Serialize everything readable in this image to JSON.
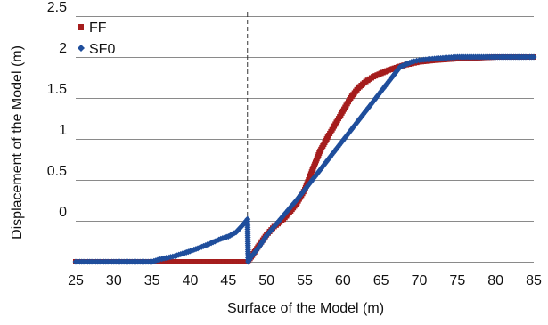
{
  "chart_data": {
    "type": "scatter",
    "title": "",
    "xlabel": "Surface of the Model (m)",
    "ylabel": "Displacement of the Model (m)",
    "xlim": [
      25,
      85
    ],
    "ylim": [
      -0.5,
      2.5
    ],
    "x_ticks": [
      "25",
      "30",
      "35",
      "40",
      "45",
      "50",
      "55",
      "60",
      "65",
      "70",
      "75",
      "80",
      "85"
    ],
    "y_ticks": [
      "0",
      "0.5",
      "1",
      "1.5",
      "2",
      "2.5"
    ],
    "grid": true,
    "legend_position": "top-left",
    "reference_line": {
      "x": 47.5,
      "style": "dashed"
    },
    "series": [
      {
        "name": "FF",
        "color": "#a51d1d",
        "marker": "square",
        "points": [
          [
            25,
            -0.5
          ],
          [
            30,
            -0.5
          ],
          [
            35,
            -0.5
          ],
          [
            40,
            -0.5
          ],
          [
            45,
            -0.5
          ],
          [
            47.5,
            -0.5
          ],
          [
            48,
            -0.44
          ],
          [
            49,
            -0.3
          ],
          [
            50,
            -0.17
          ],
          [
            51,
            -0.07
          ],
          [
            52,
            0.0
          ],
          [
            53,
            0.1
          ],
          [
            54,
            0.22
          ],
          [
            55,
            0.38
          ],
          [
            56,
            0.62
          ],
          [
            57,
            0.85
          ],
          [
            58,
            1.02
          ],
          [
            59,
            1.18
          ],
          [
            60,
            1.34
          ],
          [
            61,
            1.5
          ],
          [
            62,
            1.62
          ],
          [
            63,
            1.7
          ],
          [
            64,
            1.76
          ],
          [
            65,
            1.8
          ],
          [
            66,
            1.84
          ],
          [
            67,
            1.87
          ],
          [
            68,
            1.9
          ],
          [
            69,
            1.92
          ],
          [
            70,
            1.94
          ],
          [
            72,
            1.96
          ],
          [
            75,
            1.98
          ],
          [
            80,
            2.0
          ],
          [
            85,
            2.0
          ]
        ]
      },
      {
        "name": "SF0",
        "color": "#1f4e9c",
        "marker": "diamond",
        "points": [
          [
            25,
            -0.5
          ],
          [
            30,
            -0.5
          ],
          [
            35,
            -0.5
          ],
          [
            36,
            -0.47
          ],
          [
            38,
            -0.43
          ],
          [
            40,
            -0.37
          ],
          [
            42,
            -0.3
          ],
          [
            44,
            -0.22
          ],
          [
            45,
            -0.19
          ],
          [
            46,
            -0.14
          ],
          [
            47,
            -0.04
          ],
          [
            47.5,
            0.02
          ],
          [
            47.6,
            -0.5
          ],
          [
            48,
            -0.44
          ],
          [
            49,
            -0.32
          ],
          [
            50,
            -0.18
          ],
          [
            52,
            0.04
          ],
          [
            54,
            0.26
          ],
          [
            55,
            0.38
          ],
          [
            56,
            0.5
          ],
          [
            58,
            0.74
          ],
          [
            60,
            0.98
          ],
          [
            62,
            1.22
          ],
          [
            64,
            1.46
          ],
          [
            66,
            1.7
          ],
          [
            67.5,
            1.88
          ],
          [
            68,
            1.9
          ],
          [
            69,
            1.94
          ],
          [
            70,
            1.96
          ],
          [
            72,
            1.98
          ],
          [
            75,
            2.0
          ],
          [
            80,
            2.0
          ],
          [
            85,
            2.0
          ]
        ]
      }
    ]
  }
}
